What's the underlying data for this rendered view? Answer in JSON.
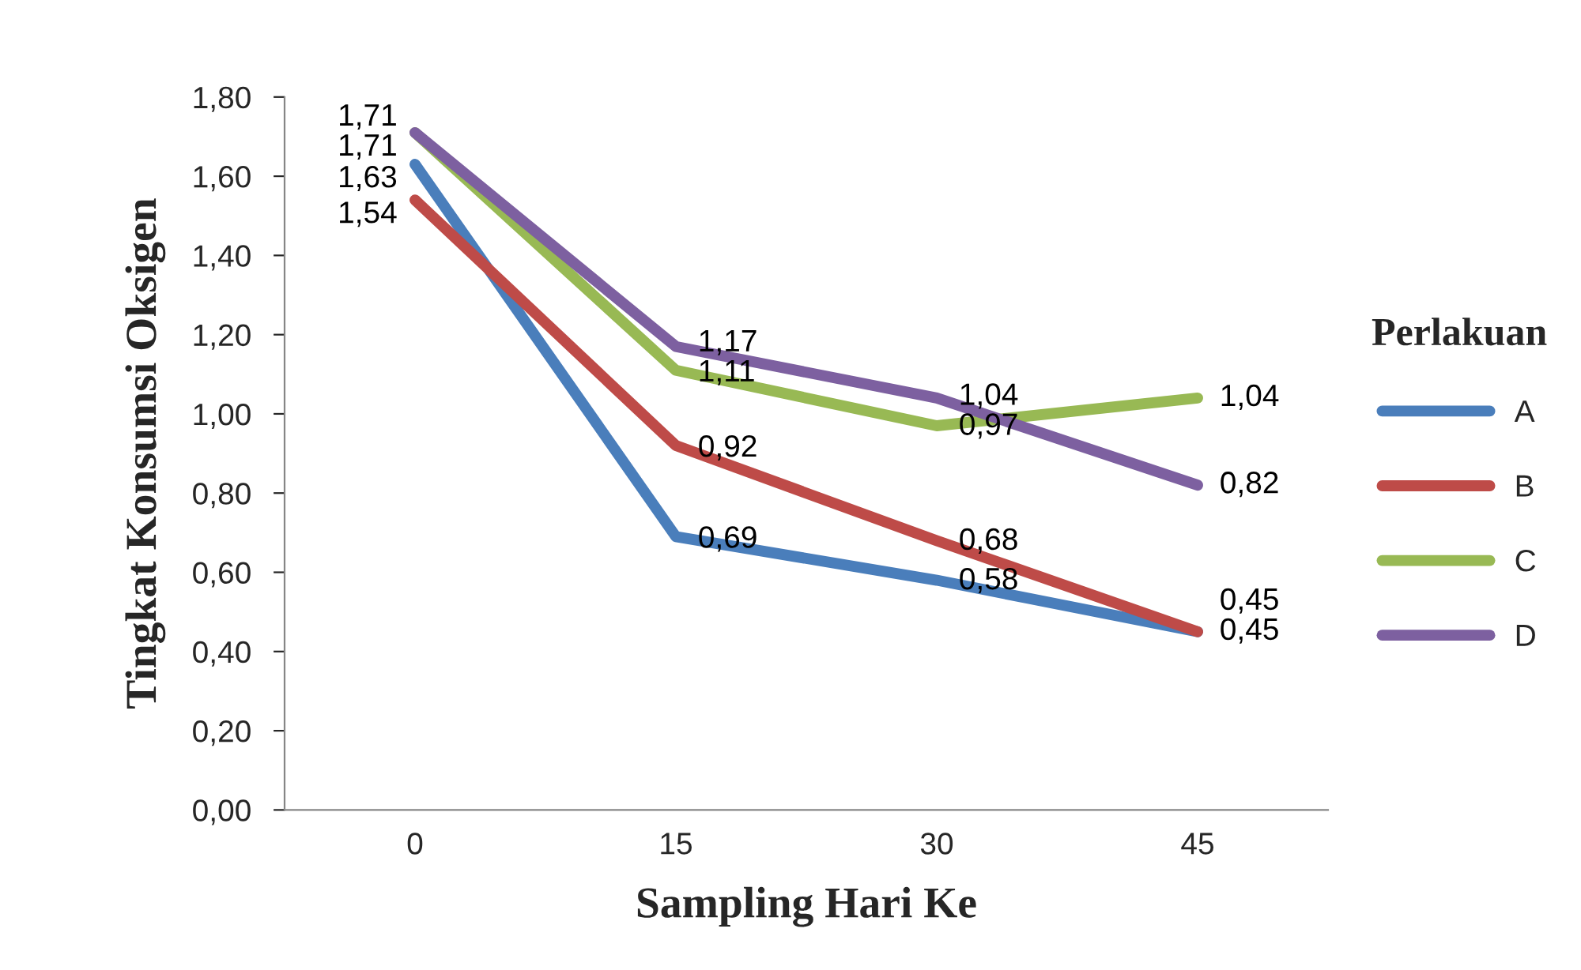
{
  "chart_data": {
    "type": "line",
    "xlabel": "Sampling Hari Ke",
    "ylabel": "Tingkat Konsumsi Oksigen",
    "legend_title": "Perlakuan",
    "categories": [
      "0",
      "15",
      "30",
      "45"
    ],
    "series": [
      {
        "name": "A",
        "color": "#4a7ebb",
        "values": [
          1.63,
          0.69,
          0.58,
          0.45
        ],
        "value_labels": [
          "1,63",
          "0,69",
          "0,58",
          "0,45"
        ]
      },
      {
        "name": "B",
        "color": "#be4b48",
        "values": [
          1.54,
          0.92,
          0.68,
          0.45
        ],
        "value_labels": [
          "1,54",
          "0,92",
          "0,68",
          "0,45"
        ]
      },
      {
        "name": "C",
        "color": "#98b954",
        "values": [
          1.71,
          1.11,
          0.97,
          1.04
        ],
        "value_labels": [
          "1,71",
          "1,11",
          "0,97",
          "1,04"
        ]
      },
      {
        "name": "D",
        "color": "#7d60a0",
        "values": [
          1.71,
          1.17,
          1.04,
          0.82
        ],
        "value_labels": [
          "1,71",
          "1,17",
          "1,04",
          "0,82"
        ]
      }
    ],
    "ylim": [
      0,
      1.8
    ],
    "yticks": [
      {
        "value": 0,
        "label": "0,00"
      },
      {
        "value": 0.2,
        "label": "0,20"
      },
      {
        "value": 0.4,
        "label": "0,40"
      },
      {
        "value": 0.6,
        "label": "0,60"
      },
      {
        "value": 0.8,
        "label": "0,80"
      },
      {
        "value": 1.0,
        "label": "1,00"
      },
      {
        "value": 1.2,
        "label": "1,20"
      },
      {
        "value": 1.4,
        "label": "1,40"
      },
      {
        "value": 1.6,
        "label": "1,60"
      },
      {
        "value": 1.8,
        "label": "1,80"
      }
    ],
    "grid": false,
    "legend": "right",
    "marker": "none",
    "line_style": "solid"
  }
}
